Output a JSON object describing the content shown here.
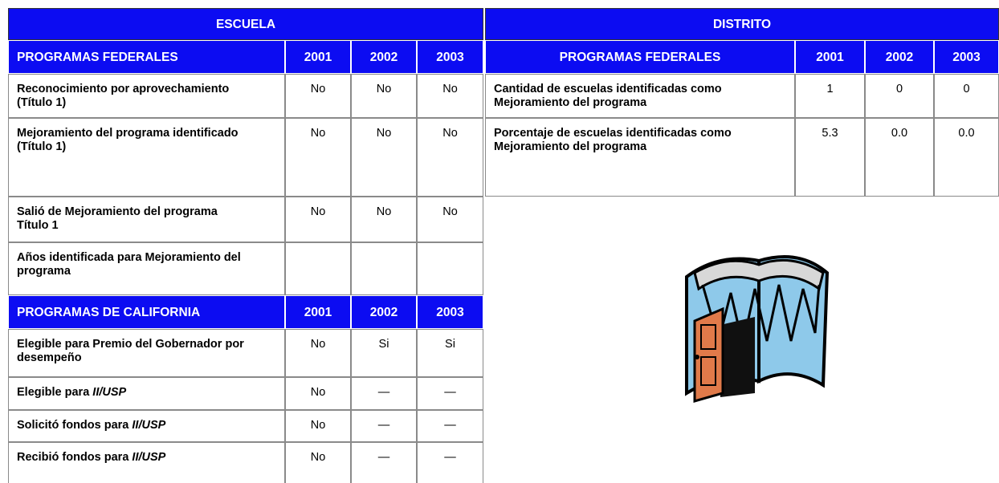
{
  "school": {
    "title": "ESCUELA",
    "federal": {
      "header": [
        "PROGRAMAS FEDERALES",
        "2001",
        "2002",
        "2003"
      ],
      "rows": [
        [
          "Reconocimiento por aprovechamiento (Título 1)",
          "No",
          "No",
          "No"
        ],
        [
          "Mejoramiento del programa identificado (Título 1)",
          "No",
          "No",
          "No"
        ],
        [
          "Salió de Mejoramiento del programa Título 1",
          "No",
          "No",
          "No"
        ],
        [
          "Años identificada para Mejoramiento del programa"
        ]
      ]
    },
    "california": {
      "header": [
        "PROGRAMAS DE CALIFORNIA",
        "2001",
        "2002",
        "2003"
      ],
      "rows": [
        {
          "label": "Elegible para Premio del Gobernador por desempeño",
          "values": [
            "No",
            "Si",
            "Si"
          ]
        },
        {
          "label": "Elegible para",
          "label_em": "II/USP",
          "values": [
            "No",
            "—",
            "—"
          ]
        },
        {
          "label": "Solicitó fondos para",
          "label_em": "II/USP",
          "values": [
            "No",
            "—",
            "—"
          ]
        },
        {
          "label": "Recibió fondos para",
          "label_em": "II/USP",
          "values": [
            "No",
            "—",
            "—"
          ]
        }
      ]
    }
  },
  "district": {
    "title": "DISTRITO",
    "federal": {
      "header": [
        "PROGRAMAS FEDERALES",
        "2001",
        "2002",
        "2003"
      ],
      "rows": [
        [
          "Cantidad de escuelas identificadas como Mejoramiento del programa",
          "1",
          "0",
          "0"
        ],
        [
          "Porcentaje de escuelas identificadas como Mejoramiento del programa",
          "5.3",
          "0.0",
          "0.0"
        ]
      ]
    }
  }
}
